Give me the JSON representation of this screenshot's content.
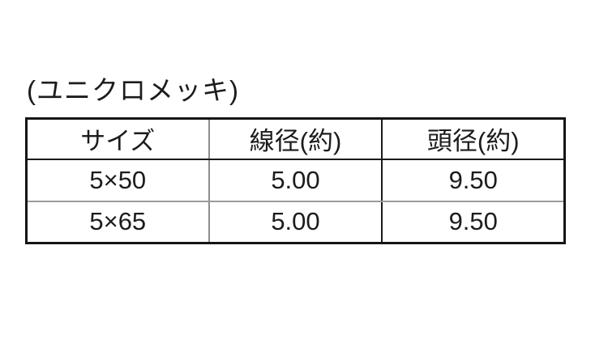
{
  "page": {
    "background": "#ffffff"
  },
  "caption": {
    "text": "(ユニクロメッキ)"
  },
  "table": {
    "headers": [
      "サイズ",
      "線径(約)",
      "頭径(約)"
    ],
    "rows": [
      {
        "cells": [
          "5×50",
          "5.00",
          "9.50"
        ]
      },
      {
        "cells": [
          "5×65",
          "5.00",
          "9.50"
        ]
      }
    ]
  },
  "colors": {
    "text": "#1c1c1c",
    "outer_border": "#151515",
    "inner_border_black": "#1a1a1a",
    "inner_border_gray": "#8d8d8d"
  }
}
